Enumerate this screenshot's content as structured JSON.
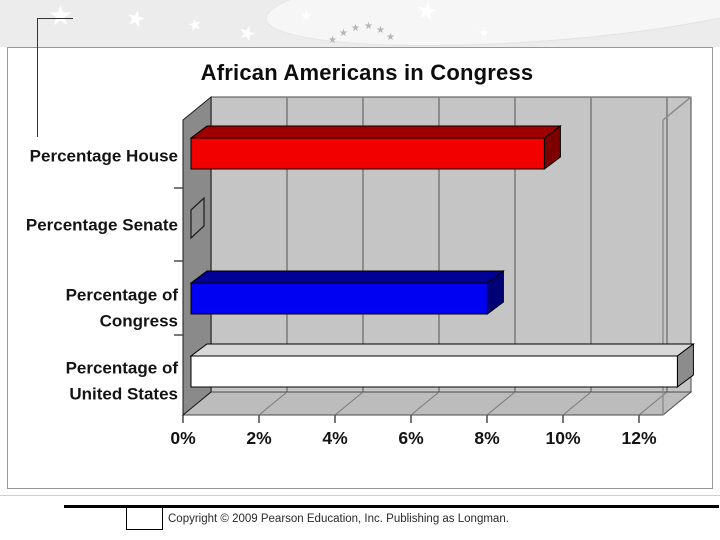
{
  "slide": {
    "copyright": "Copyright © 2009 Pearson Education, Inc. Publishing as Longman."
  },
  "chart_data": {
    "type": "bar",
    "orientation": "horizontal",
    "style": "3d",
    "title": "African Americans in Congress",
    "categories": [
      "Percentage House",
      "Percentage Senate",
      "Percentage of Congress",
      "Percentage of United States"
    ],
    "category_label_lines": [
      [
        "Percentage House"
      ],
      [
        "Percentage Senate"
      ],
      [
        "Percentage of",
        "Congress"
      ],
      [
        "Percentage of",
        "United States"
      ]
    ],
    "values": [
      9.3,
      0.2,
      7.8,
      12.8
    ],
    "unit": "%",
    "bar_colors": [
      "#f20000",
      "#8f8f8f",
      "#0000f2",
      "#ffffff"
    ],
    "bar_top_colors": [
      "#9e0000",
      "#7f7f7f",
      "#000099",
      "#d8d8d8"
    ],
    "bar_side_colors": [
      "#7c0000",
      "#707070",
      "#000077",
      "#8c8c8c"
    ],
    "x_tick_labels": [
      "0%",
      "2%",
      "4%",
      "6%",
      "8%",
      "10%",
      "12%"
    ],
    "x_tick_values": [
      0,
      2,
      4,
      6,
      8,
      10,
      12
    ],
    "xlim": [
      0,
      12.6
    ],
    "grid": true,
    "legend": false,
    "wall_color": "#c5c5c5",
    "floor_color": "#bcbcbc",
    "side_wall_color": "#8a8a8a"
  }
}
